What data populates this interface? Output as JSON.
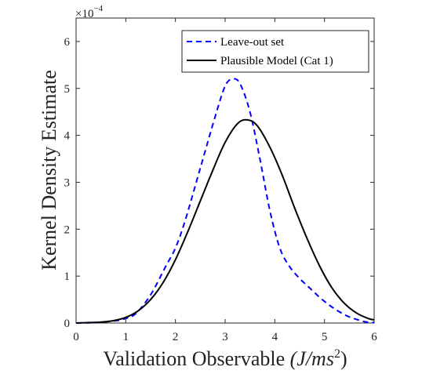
{
  "chart_data": {
    "type": "line",
    "xlabel_text": "Validation Observable ",
    "xlabel_unit": "(J/ms",
    "xlabel_unit_exp": "2",
    "xlabel_unit_close": ")",
    "ylabel": "Kernel Density Estimate",
    "y_multiplier_base": "×10",
    "y_multiplier_exp": "−4",
    "xlim": [
      0,
      6
    ],
    "ylim": [
      0,
      6.5
    ],
    "xticks": [
      "0",
      "1",
      "2",
      "3",
      "4",
      "5",
      "6"
    ],
    "yticks": [
      "0",
      "1",
      "2",
      "3",
      "4",
      "5",
      "6"
    ],
    "legend_position": "top-right",
    "grid": false,
    "series": [
      {
        "name": "Leave-out set",
        "color": "#0000ff",
        "style": "dashed",
        "x": [
          0,
          0.4,
          0.8,
          1.0,
          1.2,
          1.5,
          1.8,
          2.0,
          2.2,
          2.5,
          2.8,
          3.0,
          3.15,
          3.3,
          3.5,
          3.7,
          3.9,
          4.1,
          4.3,
          4.5,
          4.7,
          4.9,
          5.1,
          5.3,
          5.5,
          5.7,
          5.85,
          6.0
        ],
        "y": [
          0.0,
          0.01,
          0.05,
          0.1,
          0.2,
          0.6,
          1.2,
          1.6,
          2.2,
          3.3,
          4.4,
          5.05,
          5.2,
          5.1,
          4.5,
          3.5,
          2.4,
          1.6,
          1.2,
          0.95,
          0.75,
          0.55,
          0.38,
          0.24,
          0.13,
          0.06,
          0.02,
          0.01
        ]
      },
      {
        "name": "Plausible Model (Cat 1)",
        "color": "#000000",
        "style": "solid",
        "x": [
          0,
          0.25,
          0.5,
          0.75,
          1.0,
          1.25,
          1.5,
          1.75,
          2.0,
          2.25,
          2.5,
          2.75,
          3.0,
          3.25,
          3.45,
          3.65,
          3.9,
          4.15,
          4.4,
          4.65,
          4.9,
          5.15,
          5.4,
          5.65,
          5.9,
          6.0
        ],
        "y": [
          0.0,
          0.01,
          0.02,
          0.05,
          0.12,
          0.26,
          0.5,
          0.86,
          1.35,
          1.95,
          2.6,
          3.25,
          3.85,
          4.25,
          4.33,
          4.2,
          3.75,
          3.15,
          2.45,
          1.8,
          1.22,
          0.75,
          0.42,
          0.21,
          0.09,
          0.07
        ]
      }
    ]
  }
}
